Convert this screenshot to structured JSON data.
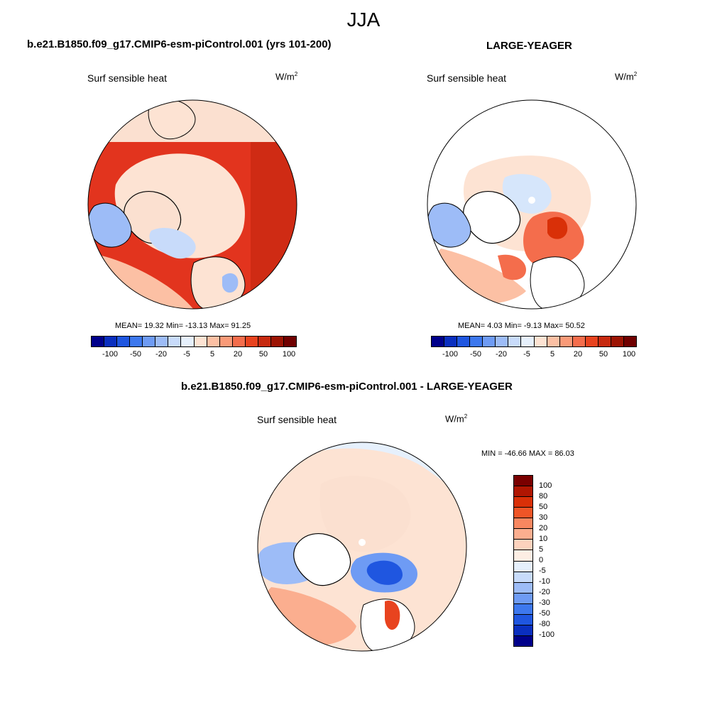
{
  "figure": {
    "title": "JJA"
  },
  "panels": [
    {
      "case_title": "b.e21.B1850.f09_g17.CMIP6-esm-piControl.001 (yrs 101-200)",
      "variable": "Surf sensible heat",
      "units_base": "W/m",
      "units_exp": "2",
      "stats": "MEAN=  19.32  Min= -13.13  Max=  91.25",
      "ocean_color": "#e2341e",
      "colorbar_labels": [
        "-100",
        "-50",
        "-20",
        "-5",
        "5",
        "20",
        "50",
        "100"
      ]
    },
    {
      "case_title": "LARGE-YEAGER",
      "variable": "Surf sensible heat",
      "units_base": "W/m",
      "units_exp": "2",
      "stats": "MEAN=   4.03  Min=  -9.13  Max=  50.52",
      "ocean_color": "#ffffff",
      "colorbar_labels": [
        "-100",
        "-50",
        "-20",
        "-5",
        "5",
        "20",
        "50",
        "100"
      ]
    },
    {
      "case_title": "b.e21.B1850.f09_g17.CMIP6-esm-piControl.001 - LARGE-YEAGER",
      "variable": "Surf sensible heat",
      "units_base": "W/m",
      "units_exp": "2",
      "stats": "MIN = -46.66 MAX =  86.03",
      "ocean_color": "#fde3d3",
      "colorbar_labels": [
        "100",
        "80",
        "50",
        "30",
        "20",
        "10",
        "5",
        "0",
        "-5",
        "-10",
        "-20",
        "-30",
        "-50",
        "-80",
        "-100"
      ]
    }
  ],
  "colorbars": {
    "horizontal_colors": [
      "#00008a",
      "#0a2fbf",
      "#1f56e0",
      "#3d78ee",
      "#6e9bf4",
      "#9dbcf7",
      "#c8dbfa",
      "#e6f0fc",
      "#fde3d3",
      "#fcc0a4",
      "#f99a78",
      "#f46d4c",
      "#e8431f",
      "#c72a10",
      "#9c1404",
      "#700000"
    ],
    "vertical_colors": [
      "#7a0000",
      "#b01602",
      "#d93008",
      "#ef5527",
      "#f88760",
      "#fbae8f",
      "#fdd2bd",
      "#fdeee4",
      "#e6f0fc",
      "#c8dbfa",
      "#9dbcf7",
      "#6e9bf4",
      "#3d78ee",
      "#1f56e0",
      "#0a2fbf",
      "#00008a"
    ]
  }
}
